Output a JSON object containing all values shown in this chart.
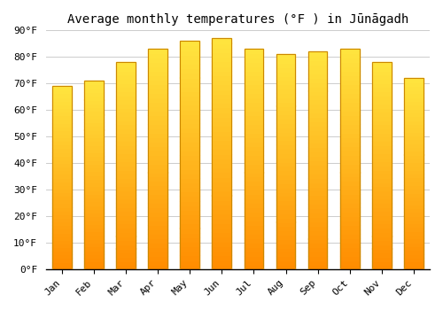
{
  "title": "Average monthly temperatures (°F ) in Jūnāgadh",
  "months": [
    "Jan",
    "Feb",
    "Mar",
    "Apr",
    "May",
    "Jun",
    "Jul",
    "Aug",
    "Sep",
    "Oct",
    "Nov",
    "Dec"
  ],
  "values": [
    69,
    71,
    78,
    83,
    86,
    87,
    83,
    81,
    82,
    83,
    78,
    72
  ],
  "bar_color_bottom": "#FFA500",
  "bar_color_top": "#FFD040",
  "bar_edge_color": "#CC8800",
  "background_color": "#FFFFFF",
  "plot_bg_color": "#FFFFFF",
  "grid_color": "#CCCCCC",
  "ylim": [
    0,
    90
  ],
  "yticks": [
    0,
    10,
    20,
    30,
    40,
    50,
    60,
    70,
    80,
    90
  ],
  "title_fontsize": 10,
  "tick_fontsize": 8,
  "bar_width": 0.6
}
